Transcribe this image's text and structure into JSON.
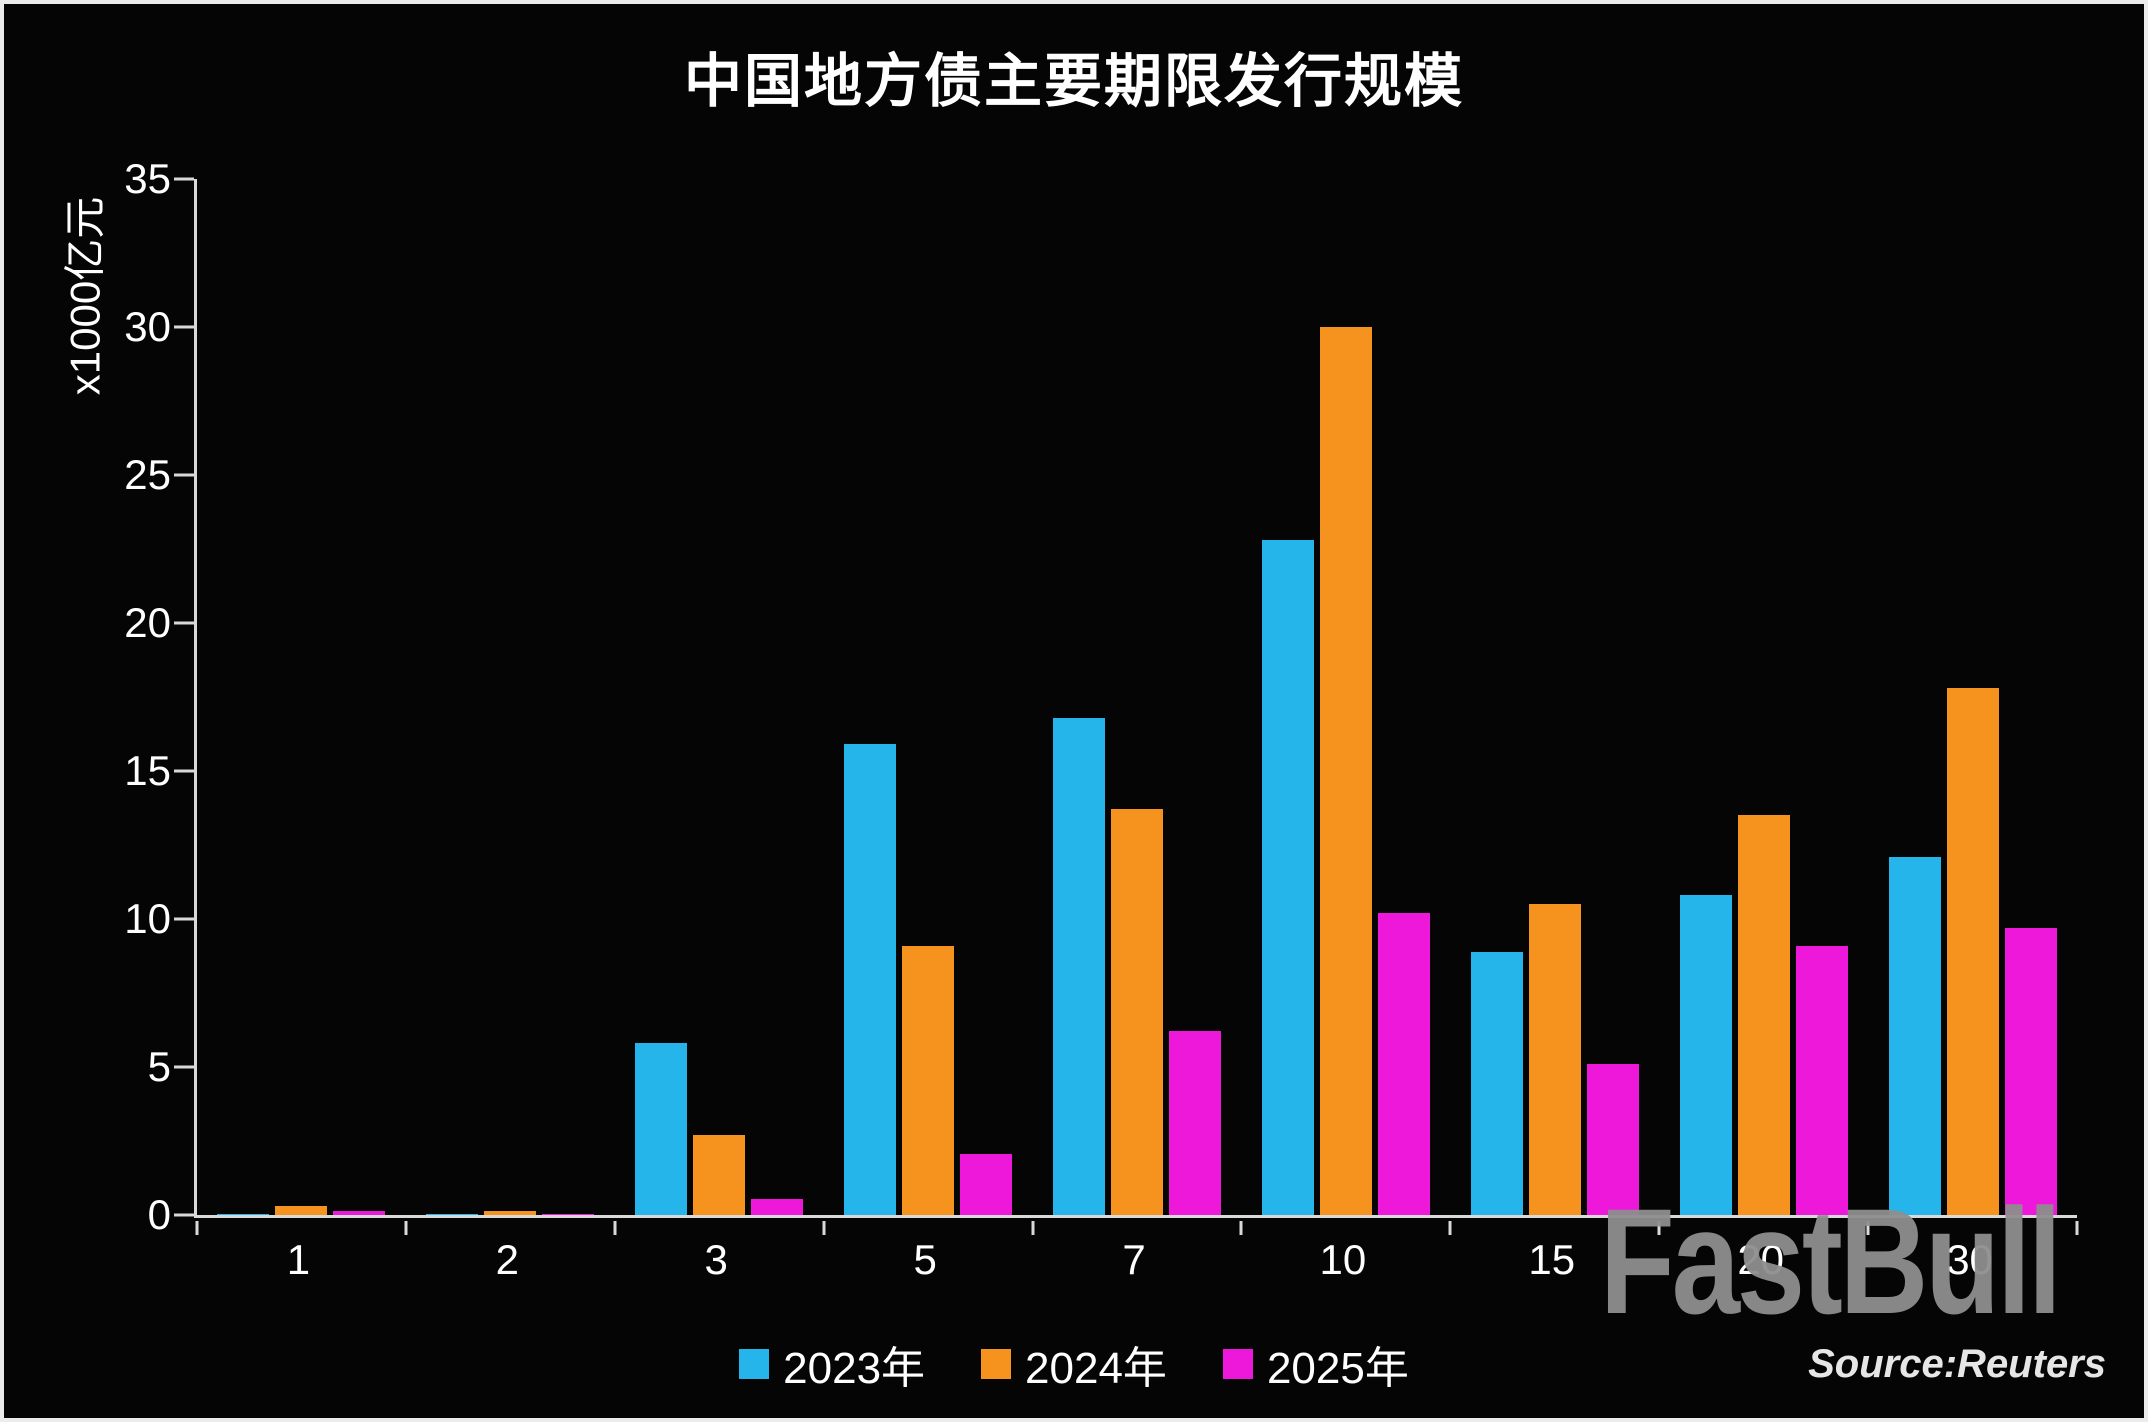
{
  "watermark": "FastBull",
  "source": "Source:Reuters",
  "chart_data": {
    "type": "bar",
    "title": "中国地方债主要期限发行规模",
    "ylabel": "x1000亿元",
    "xlabel": "",
    "categories": [
      "1",
      "2",
      "3",
      "5",
      "7",
      "10",
      "15",
      "20",
      "30"
    ],
    "series": [
      {
        "name": "2023年",
        "color": "#25B5EA",
        "values": [
          0.05,
          0.05,
          5.8,
          15.9,
          16.8,
          22.8,
          8.9,
          10.8,
          12.1
        ]
      },
      {
        "name": "2024年",
        "color": "#F6921E",
        "values": [
          0.3,
          0.15,
          2.7,
          9.1,
          13.7,
          30.0,
          10.5,
          13.5,
          17.8
        ]
      },
      {
        "name": "2025年",
        "color": "#EE18DB",
        "values": [
          0.15,
          0.02,
          0.55,
          2.05,
          6.2,
          10.2,
          5.1,
          9.1,
          9.7
        ]
      }
    ],
    "ylim": [
      0,
      35
    ],
    "yticks": [
      0,
      5,
      10,
      15,
      20,
      25,
      30,
      35
    ],
    "grid": false,
    "legend_position": "bottom",
    "background_color": "#050505",
    "axis_color": "#d9d9d9",
    "text_color": "#ffffff"
  }
}
